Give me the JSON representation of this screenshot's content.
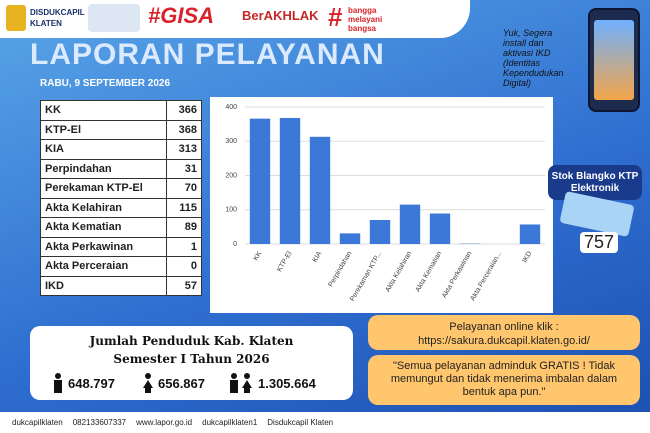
{
  "header": {
    "org": "DISDUKCAPIL",
    "city": "KLATEN",
    "gisa": "#GISA",
    "berakhlak": "BerAKHLAK",
    "bangga": [
      "bangga",
      "melayani",
      "bangsa"
    ]
  },
  "title": "LAPORAN PELAYANAN",
  "date": "RABU, 9 SEPTEMBER 2026",
  "table": {
    "rows": [
      [
        "KK",
        366
      ],
      [
        "KTP-El",
        368
      ],
      [
        "KIA",
        313
      ],
      [
        "Perpindahan",
        31
      ],
      [
        "Perekaman KTP-El",
        70
      ],
      [
        "Akta Kelahiran",
        115
      ],
      [
        "Akta Kematian",
        89
      ],
      [
        "Akta Perkawinan",
        1
      ],
      [
        "Akta Perceraian",
        0
      ],
      [
        "IKD",
        57
      ]
    ]
  },
  "chart_data": {
    "type": "bar",
    "categories": [
      "KK",
      "KTP-El",
      "KIA",
      "Perpindahan",
      "Perekaman KTP...",
      "Akta Kelahiran",
      "Akta Kematian",
      "Akta Perkawinan",
      "Akta Perceraian...",
      "IKD"
    ],
    "values": [
      366,
      368,
      313,
      31,
      70,
      115,
      89,
      1,
      0,
      57
    ],
    "color": "#3c78d8",
    "ylim": [
      0,
      400
    ],
    "yticks": [
      0,
      100,
      200,
      300,
      400
    ],
    "grid": true
  },
  "ikd_promo": "Yuk, Segera install dan aktivasi IKD (Identitas Kependudukan Digital)",
  "stock": {
    "title": "Stok Blangko KTP Elektronik",
    "value": 757
  },
  "population": {
    "title": "Jumlah Penduduk Kab. Klaten",
    "subtitle": "Semester I Tahun 2026",
    "male": "648.797",
    "female": "656.867",
    "total": "1.305.664"
  },
  "online": {
    "label": "Pelayanan online klik :",
    "url": "https://sakura.dukcapil.klaten.go.id/"
  },
  "quote": "\"Semua pelayanan adminduk GRATIS ! Tidak memungut dan tidak menerima imbalan dalam bentuk apa pun.\"",
  "footer": [
    "dukcapilklaten",
    "082133607337",
    "www.lapor.go.id",
    "dukcapilklaten1",
    "Disdukcapil Klaten"
  ]
}
